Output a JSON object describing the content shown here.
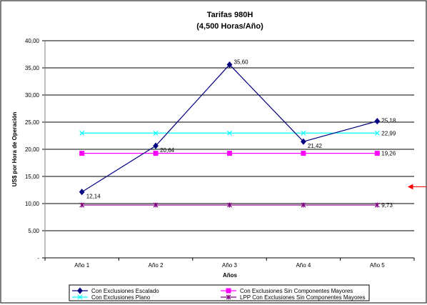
{
  "chart_data": {
    "type": "line",
    "title": "Tarifas 980H",
    "subtitle": "(4,500 Horas/Año)",
    "xlabel": "Años",
    "ylabel": "US$ por Hora de Operación",
    "categories": [
      "Año 1",
      "Año 2",
      "Año 3",
      "Año 4",
      "Año 5"
    ],
    "ylim": [
      0,
      40
    ],
    "yticks": [
      0,
      5,
      10,
      15,
      20,
      25,
      30,
      35,
      40
    ],
    "ytick_labels": [
      "-",
      "5,00",
      "10,00",
      "15,00",
      "20,00",
      "25,00",
      "30,00",
      "35,00",
      "40,00"
    ],
    "grid": "horizontal",
    "legend_position": "bottom",
    "series": [
      {
        "name": "Con Exclusiones Escalado",
        "values": [
          12.14,
          20.64,
          35.6,
          21.42,
          25.18
        ],
        "labels": [
          "12,14",
          "20,64",
          "35,60",
          "21,42",
          "25,18"
        ],
        "color": "#000080",
        "marker": "diamond"
      },
      {
        "name": "Con Exclusiones Sin Componentes Mayores",
        "values": [
          19.26,
          19.26,
          19.26,
          19.26,
          19.26
        ],
        "labels": [
          "",
          "",
          "",
          "",
          "19,26"
        ],
        "color": "#FF00FF",
        "marker": "square"
      },
      {
        "name": "Con Exclusiones Plano",
        "values": [
          22.99,
          22.99,
          22.99,
          22.99,
          22.99
        ],
        "labels": [
          "",
          "",
          "",
          "",
          "22,99"
        ],
        "color": "#00FFFF",
        "marker": "x"
      },
      {
        "name": "LPP Con Exclusiones Sin Componentes Mayores",
        "values": [
          9.73,
          9.73,
          9.73,
          9.73,
          9.73
        ],
        "labels": [
          "",
          "",
          "",
          "",
          "9,73"
        ],
        "color": "#800080",
        "marker": "star"
      }
    ],
    "annotation_arrow_color": "#FF0000"
  }
}
